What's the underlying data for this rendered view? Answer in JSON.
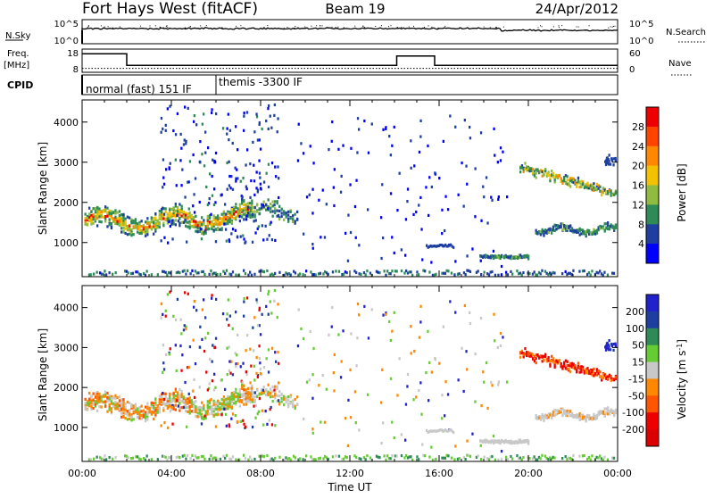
{
  "header": {
    "station": "Fort Hays West (fitACF)",
    "beam": "Beam 19",
    "date": "24/Apr/2012"
  },
  "params": {
    "nsky_label": "N.Sky",
    "nsky_ticks": [
      "10^5",
      "10^0"
    ],
    "nsearch_label": "N.Search",
    "nsearch_ticks": [
      "10^5",
      "10^0"
    ],
    "freq_label_1": "Freq.",
    "freq_label_2": "[MHz]",
    "freq_ticks": [
      "18",
      "8"
    ],
    "nave_label": "Nave",
    "nave_ticks": [
      "60",
      "0"
    ],
    "cpid_label": "CPID",
    "cpid_segments": [
      {
        "label": "normal (fast) 151 IF",
        "start_h": 0.0
      },
      {
        "label": "themis -3300 IF",
        "start_h": 6.0
      }
    ],
    "freq_steps": [
      {
        "h0": 0.0,
        "h1": 2.0,
        "mhz": 16
      },
      {
        "h0": 2.0,
        "h1": 14.1,
        "mhz": 11
      },
      {
        "h0": 14.1,
        "h1": 15.8,
        "mhz": 15
      },
      {
        "h0": 15.8,
        "h1": 24.0,
        "mhz": 11
      }
    ],
    "nave_level": 10
  },
  "chart_data": [
    {
      "type": "heatmap",
      "name": "power",
      "ylabel": "Slant Range [km]",
      "ylim": [
        150,
        4550
      ],
      "yticks": [
        "1000",
        "2000",
        "3000",
        "4000"
      ],
      "ytick_values": [
        1000,
        2000,
        3000,
        4000
      ],
      "xlim": [
        0,
        24
      ],
      "colorbar_label": "Power [dB]",
      "colorbar_ticks": [
        "4",
        "8",
        "12",
        "16",
        "20",
        "24",
        "28"
      ],
      "colorbar_values": [
        4,
        8,
        12,
        16,
        20,
        24,
        28
      ],
      "colorbar_range": [
        0,
        32
      ],
      "colors": [
        "#0000ff",
        "#1e3fa0",
        "#2e8b57",
        "#8fbc3f",
        "#f2c200",
        "#ff8800",
        "#ff4400",
        "#ee0000"
      ]
    },
    {
      "type": "heatmap",
      "name": "velocity",
      "ylabel": "Slant Range [km]",
      "ylim": [
        150,
        4550
      ],
      "yticks": [
        "1000",
        "2000",
        "3000",
        "4000"
      ],
      "ytick_values": [
        1000,
        2000,
        3000,
        4000
      ],
      "xlim": [
        0,
        24
      ],
      "xticks": [
        "00:00",
        "04:00",
        "08:00",
        "12:00",
        "16:00",
        "20:00",
        "00:00"
      ],
      "xtick_values": [
        0,
        4,
        8,
        12,
        16,
        20,
        24
      ],
      "xlabel": "Time UT",
      "colorbar_label": "Velocity [m s",
      "colorbar_label_sup": "-1",
      "colorbar_label_end": "]",
      "colorbar_ticks": [
        "200",
        "100",
        "50",
        "15",
        "-15",
        "-50",
        "-100",
        "-200"
      ],
      "colors": [
        "#2222cc",
        "#1e3fa0",
        "#2e8b57",
        "#66cc33",
        "#c8c8c8",
        "#ff8800",
        "#ff5500",
        "#ee0000",
        "#dd0000"
      ]
    }
  ]
}
